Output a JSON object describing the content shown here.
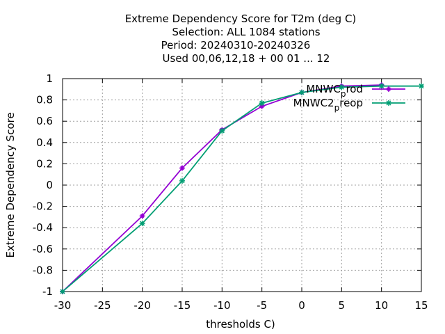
{
  "chart_data": {
    "type": "line",
    "title_lines": [
      "Extreme Dependency Score  for T2m (deg C)",
      "Selection: ALL   1084 stations",
      "Period: 20240310-20240326",
      "Used  00,06,12,18 + 00 01 ... 12"
    ],
    "xlabel": "thresholds C)",
    "ylabel": "Extreme Dependency Score",
    "xlim": [
      -30,
      15
    ],
    "ylim": [
      -1,
      1
    ],
    "xticks": [
      -30,
      -25,
      -20,
      -15,
      -10,
      -5,
      0,
      5,
      10,
      15
    ],
    "yticks": [
      -1,
      -0.8,
      -0.6,
      -0.4,
      -0.2,
      0,
      0.2,
      0.4,
      0.6,
      0.8,
      1
    ],
    "grid": true,
    "legend_position": "top-right",
    "series": [
      {
        "name_base": "MNWC",
        "name_sub": "p",
        "name_tail": "rod",
        "color": "#9400d3",
        "marker": "plus",
        "x": [
          -30,
          -20,
          -15,
          -10,
          -5,
          0,
          5,
          10
        ],
        "y": [
          -1.0,
          -0.29,
          0.16,
          0.52,
          0.74,
          0.87,
          0.93,
          0.94
        ]
      },
      {
        "name_base": "MNWC2",
        "name_sub": "p",
        "name_tail": "reop",
        "color": "#009e73",
        "marker": "star",
        "x": [
          -30,
          -20,
          -15,
          -10,
          -5,
          0,
          5,
          10,
          15
        ],
        "y": [
          -1.0,
          -0.36,
          0.04,
          0.51,
          0.77,
          0.87,
          0.92,
          0.93,
          0.93
        ]
      }
    ]
  }
}
